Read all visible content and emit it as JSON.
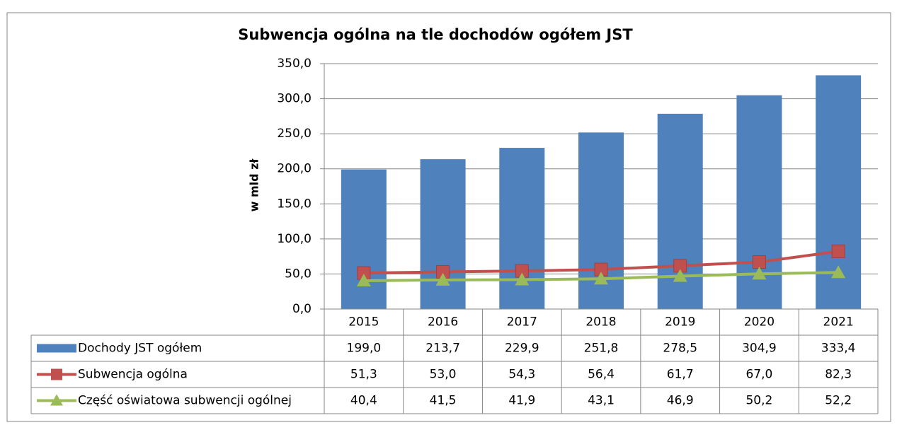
{
  "chart_data": {
    "type": "bar_line_table",
    "title": "Subwencja ogólna na tle dochodów ogółem JST",
    "y_label": "w mld zł",
    "categories": [
      "2015",
      "2016",
      "2017",
      "2018",
      "2019",
      "2020",
      "2021"
    ],
    "ylim": [
      0,
      350
    ],
    "yticks": [
      {
        "value": 0,
        "label": "0,0"
      },
      {
        "value": 50,
        "label": "50,0"
      },
      {
        "value": 100,
        "label": "100,0"
      },
      {
        "value": 150,
        "label": "150,0"
      },
      {
        "value": 200,
        "label": "200,0"
      },
      {
        "value": 250,
        "label": "250,0"
      },
      {
        "value": 300,
        "label": "300,0"
      },
      {
        "value": 350,
        "label": "350,0"
      }
    ],
    "grid": true,
    "series": [
      {
        "name": "Dochody JST ogółem",
        "type": "bar",
        "color": "#4f81bd",
        "values": [
          199.0,
          213.7,
          229.9,
          251.8,
          278.5,
          304.9,
          333.4
        ],
        "value_labels": [
          "199,0",
          "213,7",
          "229,9",
          "251,8",
          "278,5",
          "304,9",
          "333,4"
        ]
      },
      {
        "name": "Subwencja ogólna",
        "type": "line",
        "marker": "square",
        "color": "#c0504d",
        "values": [
          51.3,
          53.0,
          54.3,
          56.4,
          61.7,
          67.0,
          82.3
        ],
        "value_labels": [
          "51,3",
          "53,0",
          "54,3",
          "56,4",
          "61,7",
          "67,0",
          "82,3"
        ]
      },
      {
        "name": "Część oświatowa subwencji ogólnej",
        "type": "line",
        "marker": "triangle",
        "color": "#9bbb59",
        "values": [
          40.4,
          41.5,
          41.9,
          43.1,
          46.9,
          50.2,
          52.2
        ],
        "value_labels": [
          "40,4",
          "41,5",
          "41,9",
          "43,1",
          "46,9",
          "50,2",
          "52,2"
        ]
      }
    ]
  }
}
